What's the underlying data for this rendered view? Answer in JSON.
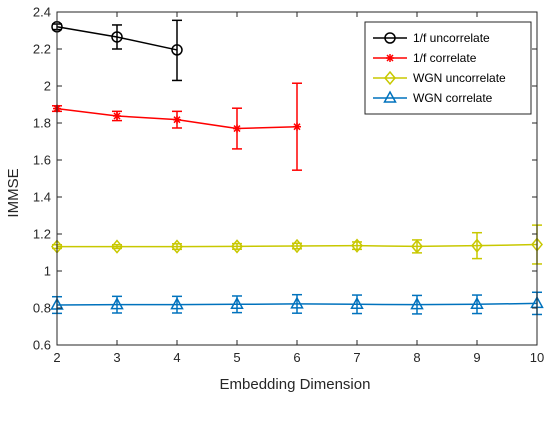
{
  "chart_data": {
    "type": "line",
    "title": "",
    "xlabel": "Embedding Dimension",
    "ylabel": "IMMSE",
    "xlim": [
      2,
      10
    ],
    "ylim": [
      0.6,
      2.4
    ],
    "xticks": [
      2,
      3,
      4,
      5,
      6,
      7,
      8,
      9,
      10
    ],
    "yticks": [
      0.6,
      0.8,
      1,
      1.2,
      1.4,
      1.6,
      1.8,
      2,
      2.2,
      2.4
    ],
    "xtick_labels": [
      "2",
      "3",
      "4",
      "5",
      "6",
      "7",
      "8",
      "9",
      "10"
    ],
    "ytick_labels": [
      "0.6",
      "0.8",
      "1",
      "1.2",
      "1.4",
      "1.6",
      "1.8",
      "2",
      "2.2",
      "2.4"
    ],
    "grid": false,
    "legend_position": "top-right",
    "series": [
      {
        "name": "1/f uncorrelate",
        "color": "#000000",
        "marker": "circle",
        "x": [
          2,
          3,
          4
        ],
        "y": [
          2.32,
          2.265,
          2.195
        ],
        "err_low": [
          0.015,
          0.065,
          0.165
        ],
        "err_high": [
          0.015,
          0.065,
          0.16
        ]
      },
      {
        "name": "1/f correlate",
        "color": "#ff0000",
        "marker": "star",
        "x": [
          2,
          3,
          4,
          5,
          6
        ],
        "y": [
          1.878,
          1.838,
          1.818,
          1.77,
          1.78
        ],
        "err_low": [
          0.015,
          0.025,
          0.045,
          0.11,
          0.235
        ],
        "err_high": [
          0.015,
          0.025,
          0.045,
          0.11,
          0.235
        ]
      },
      {
        "name": "WGN uncorrelate",
        "color": "#c8c800",
        "marker": "diamond",
        "x": [
          2,
          3,
          4,
          5,
          6,
          7,
          8,
          9,
          10
        ],
        "y": [
          1.132,
          1.132,
          1.132,
          1.133,
          1.135,
          1.137,
          1.133,
          1.137,
          1.143
        ],
        "err_low": [
          0.01,
          0.01,
          0.015,
          0.015,
          0.015,
          0.02,
          0.035,
          0.07,
          0.105
        ],
        "err_high": [
          0.01,
          0.01,
          0.015,
          0.015,
          0.015,
          0.02,
          0.035,
          0.07,
          0.105
        ]
      },
      {
        "name": "WGN correlate",
        "color": "#0072bd",
        "marker": "triangle",
        "x": [
          2,
          3,
          4,
          5,
          6,
          7,
          8,
          9,
          10
        ],
        "y": [
          0.816,
          0.818,
          0.818,
          0.82,
          0.822,
          0.82,
          0.818,
          0.82,
          0.825
        ],
        "err_low": [
          0.045,
          0.045,
          0.045,
          0.045,
          0.05,
          0.05,
          0.05,
          0.05,
          0.06
        ],
        "err_high": [
          0.045,
          0.045,
          0.045,
          0.045,
          0.05,
          0.05,
          0.05,
          0.05,
          0.06
        ]
      }
    ]
  }
}
